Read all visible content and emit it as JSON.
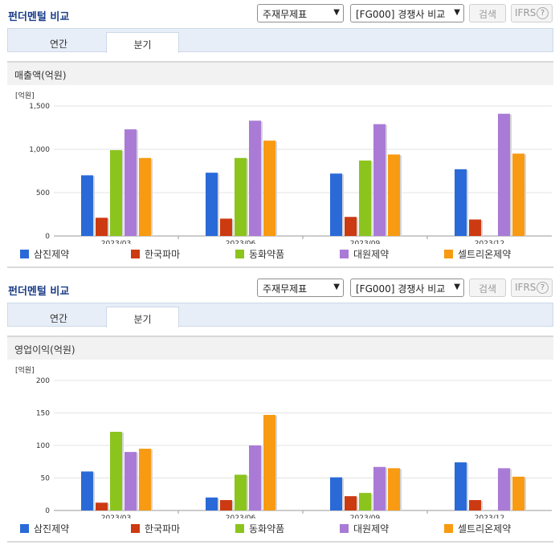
{
  "panels": [
    {
      "title": "펀더멘털 비교",
      "select1": "주재무제표",
      "select2": "[FG000] 경쟁사 비교",
      "search_label": "검색",
      "ifrs_label": "IFRS",
      "tabs": [
        "연간",
        "분기"
      ],
      "chart_title": "매출액(억원)"
    },
    {
      "title": "펀더멘털 비교",
      "select1": "주재무제표",
      "select2": "[FG000] 경쟁사 비교",
      "search_label": "검색",
      "ifrs_label": "IFRS",
      "tabs": [
        "연간",
        "분기"
      ],
      "chart_title": "영업이익(억원)"
    }
  ],
  "chart_data": [
    {
      "type": "bar",
      "title": "매출액(억원)",
      "ylabel": "[억원]",
      "categories": [
        "2023/03",
        "2023/06",
        "2023/09",
        "2023/12"
      ],
      "ylim": [
        0,
        1500
      ],
      "yticks": [
        0,
        500,
        1000,
        1500
      ],
      "ytick_labels": [
        "0",
        "500",
        "1,000",
        "1,500"
      ],
      "grid": true,
      "legend": "bottom",
      "series": [
        {
          "name": "삼진제약",
          "color": "#2a6ad8",
          "values": [
            700,
            730,
            720,
            770
          ]
        },
        {
          "name": "한국파마",
          "color": "#cc3a11",
          "values": [
            210,
            200,
            220,
            190
          ]
        },
        {
          "name": "동화약품",
          "color": "#8cc41e",
          "values": [
            990,
            900,
            870,
            null
          ]
        },
        {
          "name": "대원제약",
          "color": "#a97bd6",
          "values": [
            1230,
            1330,
            1290,
            1410
          ]
        },
        {
          "name": "셀트리온제약",
          "color": "#f89a12",
          "values": [
            900,
            1100,
            940,
            950
          ]
        }
      ]
    },
    {
      "type": "bar",
      "title": "영업이익(억원)",
      "ylabel": "[억원]",
      "categories": [
        "2023/03",
        "2023/06",
        "2023/09",
        "2023/12"
      ],
      "ylim": [
        0,
        200
      ],
      "yticks": [
        0,
        50,
        100,
        150,
        200
      ],
      "ytick_labels": [
        "0",
        "50",
        "100",
        "150",
        "200"
      ],
      "grid": true,
      "legend": "bottom",
      "series": [
        {
          "name": "삼진제약",
          "color": "#2a6ad8",
          "values": [
            60,
            20,
            51,
            74
          ]
        },
        {
          "name": "한국파마",
          "color": "#cc3a11",
          "values": [
            12,
            16,
            22,
            16
          ]
        },
        {
          "name": "동화약품",
          "color": "#8cc41e",
          "values": [
            121,
            55,
            27,
            null
          ]
        },
        {
          "name": "대원제약",
          "color": "#a97bd6",
          "values": [
            90,
            100,
            67,
            65
          ]
        },
        {
          "name": "셀트리온제약",
          "color": "#f89a12",
          "values": [
            95,
            147,
            65,
            52
          ]
        }
      ]
    }
  ]
}
